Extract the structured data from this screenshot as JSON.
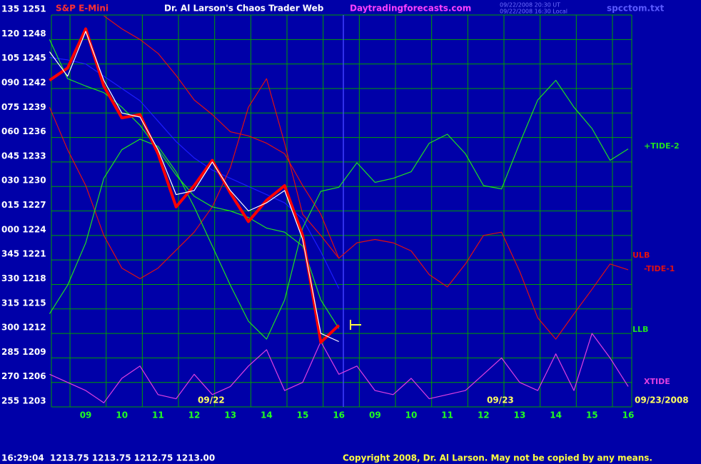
{
  "chart_data": {
    "type": "line",
    "symbol": "S&P E-Mini",
    "title": "Dr. Al Larson's Chaos Trader Web",
    "website": "Daytradingforecasts.com",
    "timestamps": [
      "09/22/2008 20:30 UT",
      "09/22/2008 16:30 Local"
    ],
    "filename": "spcctom.txt",
    "date_labels": [
      "09/22",
      "09/23",
      "09/23/2008"
    ],
    "status_line": "16:29:04  1213.75 1213.75 1212.75 1213.00",
    "copyright": "Copyright 2008, Dr. Al Larson. May not be copied by any means.",
    "categories": [
      null,
      null,
      "09",
      null,
      "10",
      null,
      "11",
      null,
      "12",
      null,
      "13",
      null,
      "14",
      null,
      "15",
      null,
      "16",
      null,
      "09",
      null,
      "10",
      null,
      "11",
      null,
      "12",
      null,
      "13",
      null,
      "14",
      null,
      "15",
      null,
      "16"
    ],
    "ylim": [
      1203,
      1251
    ],
    "yticks": [
      {
        "value": 1251,
        "label": "135 1251"
      },
      {
        "value": 1248,
        "label": "120 1248"
      },
      {
        "value": 1245,
        "label": "105 1245"
      },
      {
        "value": 1242,
        "label": "090 1242"
      },
      {
        "value": 1239,
        "label": "075 1239"
      },
      {
        "value": 1236,
        "label": "060 1236"
      },
      {
        "value": 1233,
        "label": "045 1233"
      },
      {
        "value": 1230,
        "label": "030 1230"
      },
      {
        "value": 1227,
        "label": "015 1227"
      },
      {
        "value": 1224,
        "label": "000 1224"
      },
      {
        "value": 1221,
        "label": "345 1221"
      },
      {
        "value": 1218,
        "label": "330 1218"
      },
      {
        "value": 1215,
        "label": "315 1215"
      },
      {
        "value": 1212,
        "label": "300 1212"
      },
      {
        "value": 1209,
        "label": "285 1209"
      },
      {
        "value": 1206,
        "label": "270 1206"
      },
      {
        "value": 1203,
        "label": "255 1203"
      }
    ],
    "grid": true,
    "series": [
      {
        "color": "#1c1cff",
        "values": [
          1245.8,
          1245.5,
          1245,
          1243.5,
          1242,
          1240.5,
          1238,
          1235.5,
          1233.5,
          1232,
          1231,
          1230,
          1229,
          1228,
          1226,
          1222,
          1217.5,
          null,
          null,
          null,
          null,
          null,
          null,
          null,
          null,
          null,
          null,
          null,
          null,
          null,
          null,
          null,
          null
        ]
      },
      {
        "name": "ULB",
        "color": "#e01010",
        "values": [
          null,
          null,
          null,
          1250.9,
          1249.3,
          1248,
          1246.3,
          1243.6,
          1240.6,
          1238.8,
          1236.7,
          1236.2,
          1235.3,
          1234,
          1230.1,
          1226.6,
          1221.2,
          null,
          null,
          null,
          null,
          null,
          null,
          null,
          null,
          null,
          null,
          null,
          null,
          null,
          null,
          null,
          null
        ]
      },
      {
        "name": "-TIDE-1",
        "color": "#e01010",
        "values": [
          1239.7,
          1234.5,
          1230.1,
          1224,
          1220,
          1218.7,
          1220,
          1222.2,
          1224.4,
          1227.5,
          1232.3,
          1239.7,
          1243.2,
          1235.3,
          1226.6,
          1224,
          1221.2,
          1223.1,
          1223.5,
          1223.1,
          1222.1,
          1219.2,
          1217.7,
          1220.5,
          1224,
          1224.4,
          1219.6,
          1213.9,
          1211.3,
          1214.4,
          1217.4,
          1220.5,
          1219.8
        ]
      },
      {
        "name": "+TIDE-2",
        "color": "#20e020",
        "values": [
          1214.4,
          1217.9,
          1223.1,
          1231,
          1234.5,
          1235.8,
          1234.9,
          1231.8,
          1227.5,
          1222.7,
          1217.9,
          1213.5,
          1211.3,
          1216.1,
          1224.9,
          1229.4,
          1229.9,
          1232.9,
          1230.5,
          1231,
          1231.8,
          1235.3,
          1236.4,
          1234,
          1230.1,
          1229.7,
          1235.3,
          1240.6,
          1243,
          1239.7,
          1237.1,
          1233.2,
          1234.6
        ]
      },
      {
        "name": "LLB",
        "color": "#20e020",
        "values": [
          1248,
          1243.2,
          1242.3,
          1241.5,
          1239.7,
          1237.5,
          1234.5,
          1231.4,
          1228.8,
          1227.5,
          1227,
          1226.2,
          1224.9,
          1224.4,
          1222.7,
          1216.1,
          1212.6,
          null,
          null,
          null,
          null,
          null,
          null,
          null,
          null,
          null,
          null,
          null,
          null,
          null,
          null,
          null,
          null
        ]
      },
      {
        "name": "XTIDE",
        "color": "#e040e0",
        "values": [
          1207,
          1206,
          1205,
          1203.5,
          1206.5,
          1208,
          1204.5,
          1204,
          1207,
          1204.5,
          1205.5,
          1208,
          1210,
          1205,
          1206,
          1211,
          1207,
          1208,
          1205,
          1204.5,
          1206.5,
          1204,
          1204.5,
          1205,
          1207,
          1209,
          1206,
          1205,
          1209.5,
          1205,
          1212,
          1209,
          1205.5
        ]
      },
      {
        "color": "#ff0000",
        "values": [
          1243,
          1244.5,
          1249.3,
          1242.3,
          1238.4,
          1238.8,
          1234,
          1227.5,
          1230.1,
          1233.2,
          1229.2,
          1225.7,
          1228.3,
          1230.1,
          1224,
          1210.9,
          1213,
          null,
          null,
          null,
          null,
          null,
          null,
          null,
          null,
          null,
          null,
          null,
          null,
          null,
          null,
          null,
          null
        ]
      },
      {
        "color": "#ffffff",
        "values": [
          1246.5,
          1243.5,
          1249,
          1243,
          1239,
          1238.5,
          1234.5,
          1229,
          1229.5,
          1233,
          1229.5,
          1227,
          1228,
          1229.5,
          1223.5,
          1212,
          1211,
          null,
          null,
          null,
          null,
          null,
          null,
          null,
          null,
          null,
          null,
          null,
          null,
          null,
          null,
          null,
          null
        ]
      }
    ]
  }
}
